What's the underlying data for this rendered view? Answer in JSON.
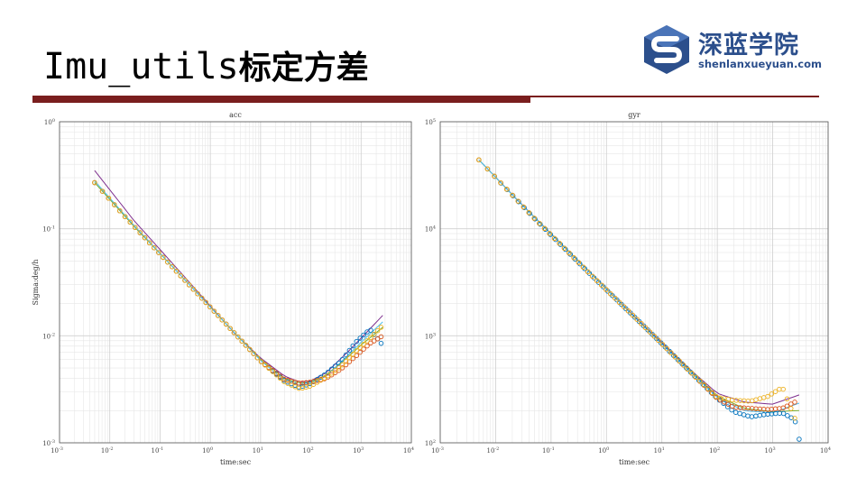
{
  "slide": {
    "title_code": "Imu_utils",
    "title_cn": "标定方差"
  },
  "logo": {
    "name_cn": "深蓝学院",
    "site": "shenlanxueyuan.com",
    "icon": "stacked-cube-s-icon",
    "color": "#2c4f8c"
  },
  "colors": {
    "rule": "#7a1e1e",
    "series": [
      "#0072bd",
      "#d95319",
      "#edb120",
      "#7e2f8e",
      "#77ac30",
      "#4dbeee"
    ]
  },
  "chart_data": [
    {
      "type": "scatter",
      "title": "acc",
      "xlabel": "time:sec",
      "ylabel": "Sigma:deg/h",
      "log_x": true,
      "log_y": true,
      "grid": true,
      "xlim": [
        0.001,
        10000
      ],
      "ylim": [
        0.001,
        1
      ],
      "x_ticks": [
        {
          "value": 0.001,
          "base": "10",
          "exp": "-3"
        },
        {
          "value": 0.01,
          "base": "10",
          "exp": "-2"
        },
        {
          "value": 0.1,
          "base": "10",
          "exp": "-1"
        },
        {
          "value": 1,
          "base": "10",
          "exp": "0"
        },
        {
          "value": 10,
          "base": "10",
          "exp": "1"
        },
        {
          "value": 100,
          "base": "10",
          "exp": "2"
        },
        {
          "value": 1000,
          "base": "10",
          "exp": "3"
        },
        {
          "value": 10000,
          "base": "10",
          "exp": "4"
        }
      ],
      "y_ticks": [
        {
          "value": 0.001,
          "base": "10",
          "exp": "-3"
        },
        {
          "value": 0.01,
          "base": "10",
          "exp": "-2"
        },
        {
          "value": 0.1,
          "base": "10",
          "exp": "-1"
        },
        {
          "value": 1,
          "base": "10",
          "exp": "0"
        }
      ],
      "series": [
        {
          "values": [
            [
              0.005,
              0.27
            ],
            [
              0.02,
              0.13
            ],
            [
              0.1,
              0.058
            ],
            [
              1,
              0.0185
            ],
            [
              10,
              0.0058
            ],
            [
              30,
              0.0038
            ],
            [
              60,
              0.0033
            ],
            [
              100,
              0.0036
            ],
            [
              200,
              0.0044
            ],
            [
              400,
              0.0058
            ],
            [
              800,
              0.0088
            ],
            [
              1500,
              0.0115
            ],
            [
              2500,
              0.0085
            ]
          ]
        },
        {
          "values": [
            [
              0.005,
              0.27
            ],
            [
              0.02,
              0.13
            ],
            [
              0.1,
              0.058
            ],
            [
              1,
              0.0185
            ],
            [
              10,
              0.0058
            ],
            [
              30,
              0.0039
            ],
            [
              60,
              0.0036
            ],
            [
              100,
              0.0037
            ],
            [
              200,
              0.004
            ],
            [
              400,
              0.0049
            ],
            [
              800,
              0.0065
            ],
            [
              1500,
              0.0085
            ],
            [
              2500,
              0.0098
            ]
          ]
        },
        {
          "values": [
            [
              0.005,
              0.27
            ],
            [
              0.02,
              0.13
            ],
            [
              0.1,
              0.058
            ],
            [
              1,
              0.0185
            ],
            [
              10,
              0.0058
            ],
            [
              30,
              0.0037
            ],
            [
              60,
              0.0032
            ],
            [
              100,
              0.0034
            ],
            [
              200,
              0.0041
            ],
            [
              400,
              0.0052
            ],
            [
              800,
              0.0072
            ],
            [
              1500,
              0.0095
            ],
            [
              2500,
              0.012
            ]
          ]
        }
      ],
      "fits": [
        {
          "values": [
            [
              0.005,
              0.35
            ],
            [
              0.03,
              0.12
            ],
            [
              0.3,
              0.036
            ],
            [
              3,
              0.0106
            ],
            [
              10,
              0.0062
            ],
            [
              30,
              0.0042
            ],
            [
              60,
              0.0037
            ],
            [
              100,
              0.0038
            ],
            [
              200,
              0.0045
            ],
            [
              500,
              0.0068
            ],
            [
              1000,
              0.0095
            ],
            [
              2700,
              0.0155
            ]
          ]
        },
        {
          "values": [
            [
              0.005,
              0.27
            ],
            [
              0.03,
              0.106
            ],
            [
              0.3,
              0.034
            ],
            [
              3,
              0.0107
            ],
            [
              10,
              0.006
            ],
            [
              30,
              0.004
            ],
            [
              60,
              0.0036
            ],
            [
              100,
              0.0037
            ],
            [
              200,
              0.0043
            ],
            [
              500,
              0.0061
            ],
            [
              1000,
              0.0082
            ],
            [
              2700,
              0.012
            ]
          ]
        },
        {
          "values": [
            [
              0.005,
              0.28
            ],
            [
              0.03,
              0.108
            ],
            [
              0.3,
              0.034
            ],
            [
              3,
              0.0107
            ],
            [
              10,
              0.0059
            ],
            [
              30,
              0.0038
            ],
            [
              60,
              0.0034
            ],
            [
              100,
              0.0036
            ],
            [
              200,
              0.0042
            ],
            [
              500,
              0.0063
            ],
            [
              1000,
              0.0087
            ],
            [
              2700,
              0.0135
            ]
          ]
        }
      ]
    },
    {
      "type": "scatter",
      "title": "gyr",
      "xlabel": "time:sec",
      "ylabel": "",
      "log_x": true,
      "log_y": true,
      "grid": true,
      "xlim": [
        0.001,
        10000
      ],
      "ylim": [
        100,
        100000
      ],
      "x_ticks": [
        {
          "value": 0.001,
          "base": "10",
          "exp": "-3"
        },
        {
          "value": 0.01,
          "base": "10",
          "exp": "-2"
        },
        {
          "value": 0.1,
          "base": "10",
          "exp": "-1"
        },
        {
          "value": 1,
          "base": "10",
          "exp": "0"
        },
        {
          "value": 10,
          "base": "10",
          "exp": "1"
        },
        {
          "value": 100,
          "base": "10",
          "exp": "2"
        },
        {
          "value": 1000,
          "base": "10",
          "exp": "3"
        },
        {
          "value": 10000,
          "base": "10",
          "exp": "4"
        }
      ],
      "y_ticks": [
        {
          "value": 100,
          "base": "10",
          "exp": "2"
        },
        {
          "value": 1000,
          "base": "10",
          "exp": "3"
        },
        {
          "value": 10000,
          "base": "10",
          "exp": "4"
        },
        {
          "value": 100000,
          "base": "10",
          "exp": "5"
        }
      ],
      "series": [
        {
          "values": [
            [
              0.005,
              44000
            ],
            [
              0.05,
              12500
            ],
            [
              0.5,
              3800
            ],
            [
              5,
              1200
            ],
            [
              30,
              480
            ],
            [
              100,
              260
            ],
            [
              200,
              195
            ],
            [
              400,
              175
            ],
            [
              800,
              185
            ],
            [
              1500,
              190
            ],
            [
              2500,
              165
            ],
            [
              3000,
              108
            ]
          ]
        },
        {
          "values": [
            [
              0.005,
              44000
            ],
            [
              0.05,
              12500
            ],
            [
              0.5,
              3800
            ],
            [
              5,
              1200
            ],
            [
              30,
              480
            ],
            [
              100,
              260
            ],
            [
              200,
              215
            ],
            [
              400,
              210
            ],
            [
              800,
              205
            ],
            [
              1500,
              210
            ],
            [
              2500,
              240
            ]
          ]
        },
        {
          "values": [
            [
              0.005,
              44000
            ],
            [
              0.05,
              12500
            ],
            [
              0.5,
              3800
            ],
            [
              5,
              1200
            ],
            [
              30,
              480
            ],
            [
              100,
              265
            ],
            [
              200,
              250
            ],
            [
              400,
              245
            ],
            [
              800,
              270
            ],
            [
              1500,
              330
            ],
            [
              2500,
              170
            ]
          ]
        }
      ],
      "fits": [
        {
          "values": [
            [
              0.005,
              44000
            ],
            [
              0.03,
              16800
            ],
            [
              0.3,
              5100
            ],
            [
              3,
              1570
            ],
            [
              30,
              500
            ],
            [
              100,
              290
            ],
            [
              300,
              240
            ],
            [
              1000,
              230
            ],
            [
              3000,
              280
            ]
          ]
        },
        {
          "values": [
            [
              0.005,
              44000
            ],
            [
              0.03,
              16700
            ],
            [
              0.3,
              5100
            ],
            [
              3,
              1550
            ],
            [
              30,
              485
            ],
            [
              100,
              275
            ],
            [
              300,
              210
            ],
            [
              1000,
              195
            ],
            [
              3000,
              200
            ]
          ]
        },
        {
          "values": [
            [
              0.005,
              44000
            ],
            [
              0.03,
              16700
            ],
            [
              0.3,
              5100
            ],
            [
              3,
              1550
            ],
            [
              30,
              480
            ],
            [
              100,
              265
            ],
            [
              300,
              200
            ],
            [
              1000,
              190
            ],
            [
              3000,
              235
            ]
          ]
        }
      ]
    }
  ]
}
